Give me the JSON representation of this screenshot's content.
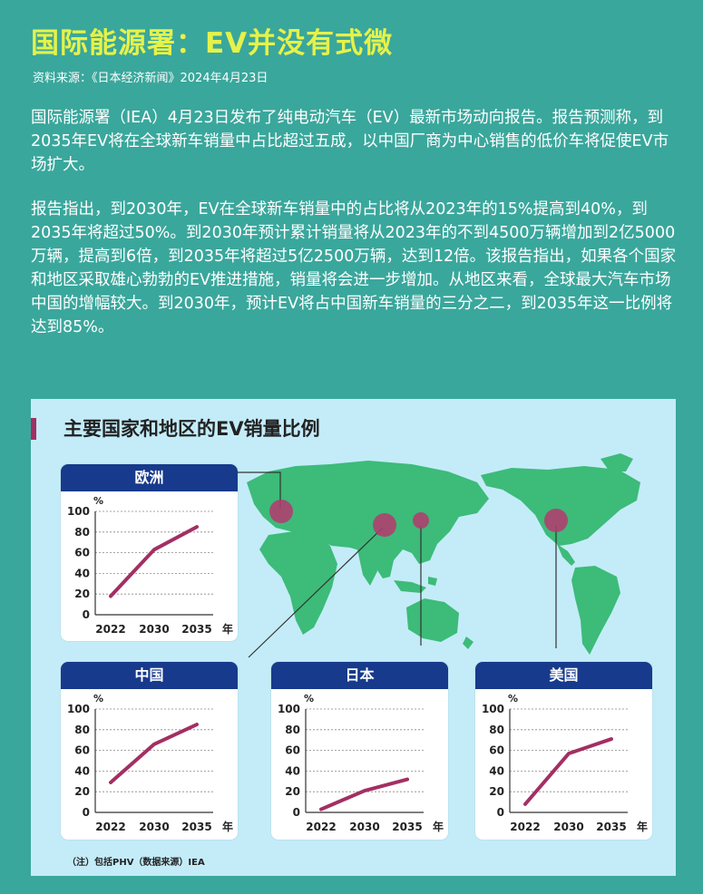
{
  "header": {
    "title": "国际能源署：EV并没有式微",
    "source": "资料来源：《日本经济新闻》2024年4月23日"
  },
  "article": {
    "paragraph1": "国际能源署（IEA）4月23日发布了纯电动汽车（EV）最新市场动向报告。报告预测称，到2035年EV将在全球新车销量中占比超过五成，以中国厂商为中心销售的低价车将促使EV市场扩大。",
    "paragraph2": "报告指出，到2030年，EV在全球新车销量中的占比将从2023年的15%提高到40%，到2035年将超过50%。到2030年预计累计销量将从2023年的不到4500万辆增加到2亿5000万辆，提高到6倍，到2035年将超过5亿2500万辆，达到12倍。该报告指出，如果各个国家和地区采取雄心勃勃的EV推进措施，销量将会进一步增加。从地区来看，全球最大汽车市场中国的增幅较大。到2030年，预计EV将占中国新车销量的三分之二，到2035年这一比例将达到85%。"
  },
  "panel": {
    "title": "主要国家和地区的EV销量比例",
    "note": "（注）包括PHV（数据来源）IEA"
  },
  "colors": {
    "background": "#3aa79c",
    "title": "#e5f249",
    "panel": "#c3ecf8",
    "map_land": "#3dbb79",
    "card_header": "#173a8c",
    "line": "#a32f63",
    "marker": "#b5386f"
  },
  "chart_data": [
    {
      "type": "line",
      "title": "欧洲",
      "x": [
        "2022",
        "2030",
        "2035"
      ],
      "x_unit": "年",
      "y_unit": "%",
      "yticks": [
        0,
        20,
        40,
        60,
        80,
        100
      ],
      "ylim": [
        0,
        100
      ],
      "values": [
        18,
        63,
        85
      ],
      "grid": true
    },
    {
      "type": "line",
      "title": "中国",
      "x": [
        "2022",
        "2030",
        "2035"
      ],
      "x_unit": "年",
      "y_unit": "%",
      "yticks": [
        0,
        20,
        40,
        60,
        80,
        100
      ],
      "ylim": [
        0,
        100
      ],
      "values": [
        29,
        66,
        85
      ],
      "grid": true
    },
    {
      "type": "line",
      "title": "日本",
      "x": [
        "2022",
        "2030",
        "2035"
      ],
      "x_unit": "年",
      "y_unit": "%",
      "yticks": [
        0,
        20,
        40,
        60,
        80,
        100
      ],
      "ylim": [
        0,
        100
      ],
      "values": [
        3,
        21,
        32
      ],
      "grid": true
    },
    {
      "type": "line",
      "title": "美国",
      "x": [
        "2022",
        "2030",
        "2035"
      ],
      "x_unit": "年",
      "y_unit": "%",
      "yticks": [
        0,
        20,
        40,
        60,
        80,
        100
      ],
      "ylim": [
        0,
        100
      ],
      "values": [
        8,
        57,
        71
      ],
      "grid": true
    }
  ]
}
